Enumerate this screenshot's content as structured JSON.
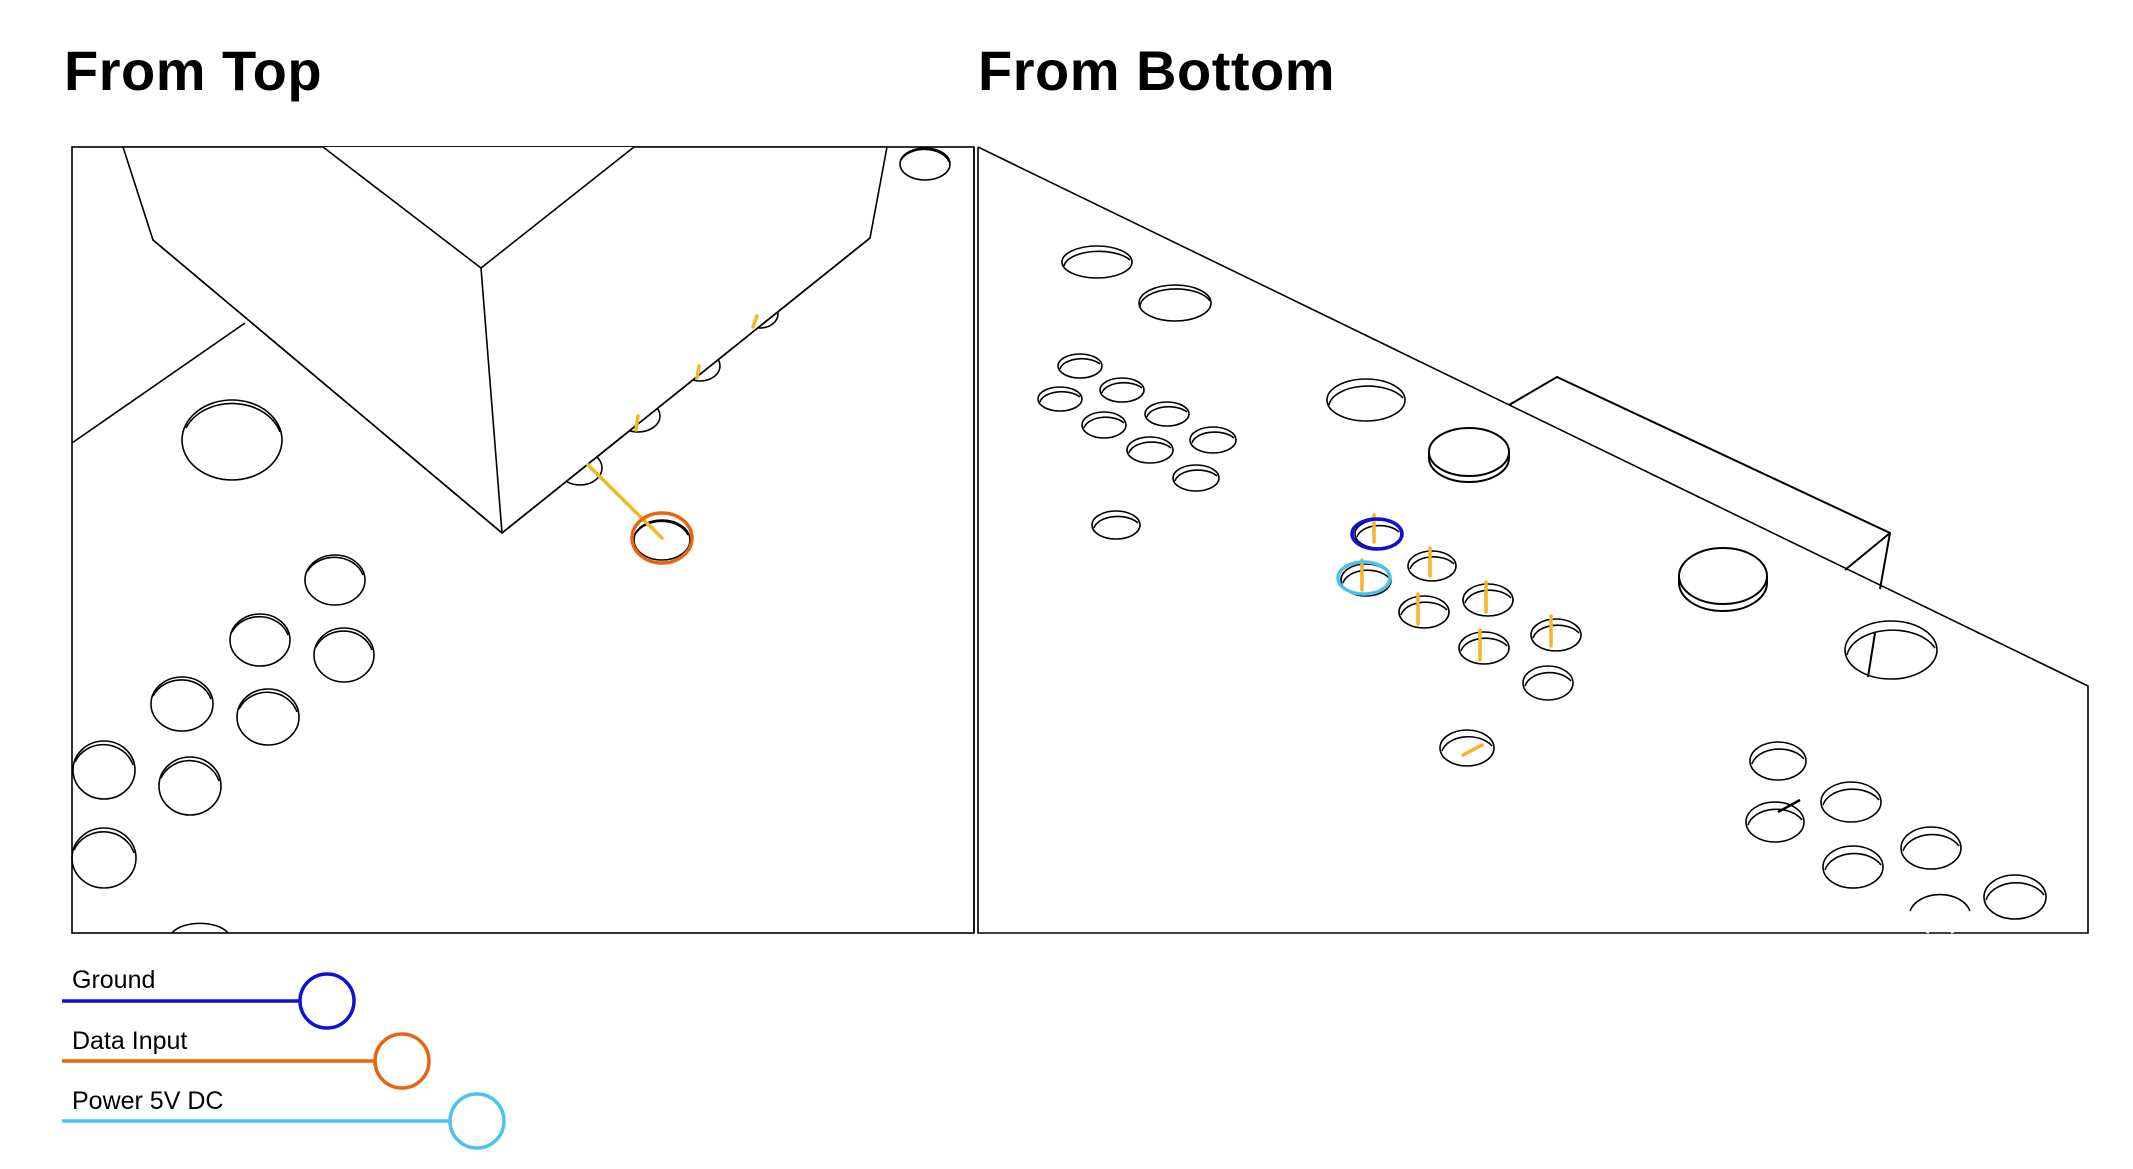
{
  "titles": {
    "top": "From Top",
    "bottom": "From Bottom"
  },
  "legend": [
    {
      "label": "Ground",
      "color": "#1010d6"
    },
    {
      "label": "Data Input",
      "color": "#e8650f"
    },
    {
      "label": "Power 5V DC",
      "color": "#4cc3ee"
    }
  ],
  "colors": {
    "outline": "#000000",
    "pin": "#f6b42a",
    "ground": "#1010d6",
    "data": "#e8650f",
    "power": "#4cc3ee"
  }
}
